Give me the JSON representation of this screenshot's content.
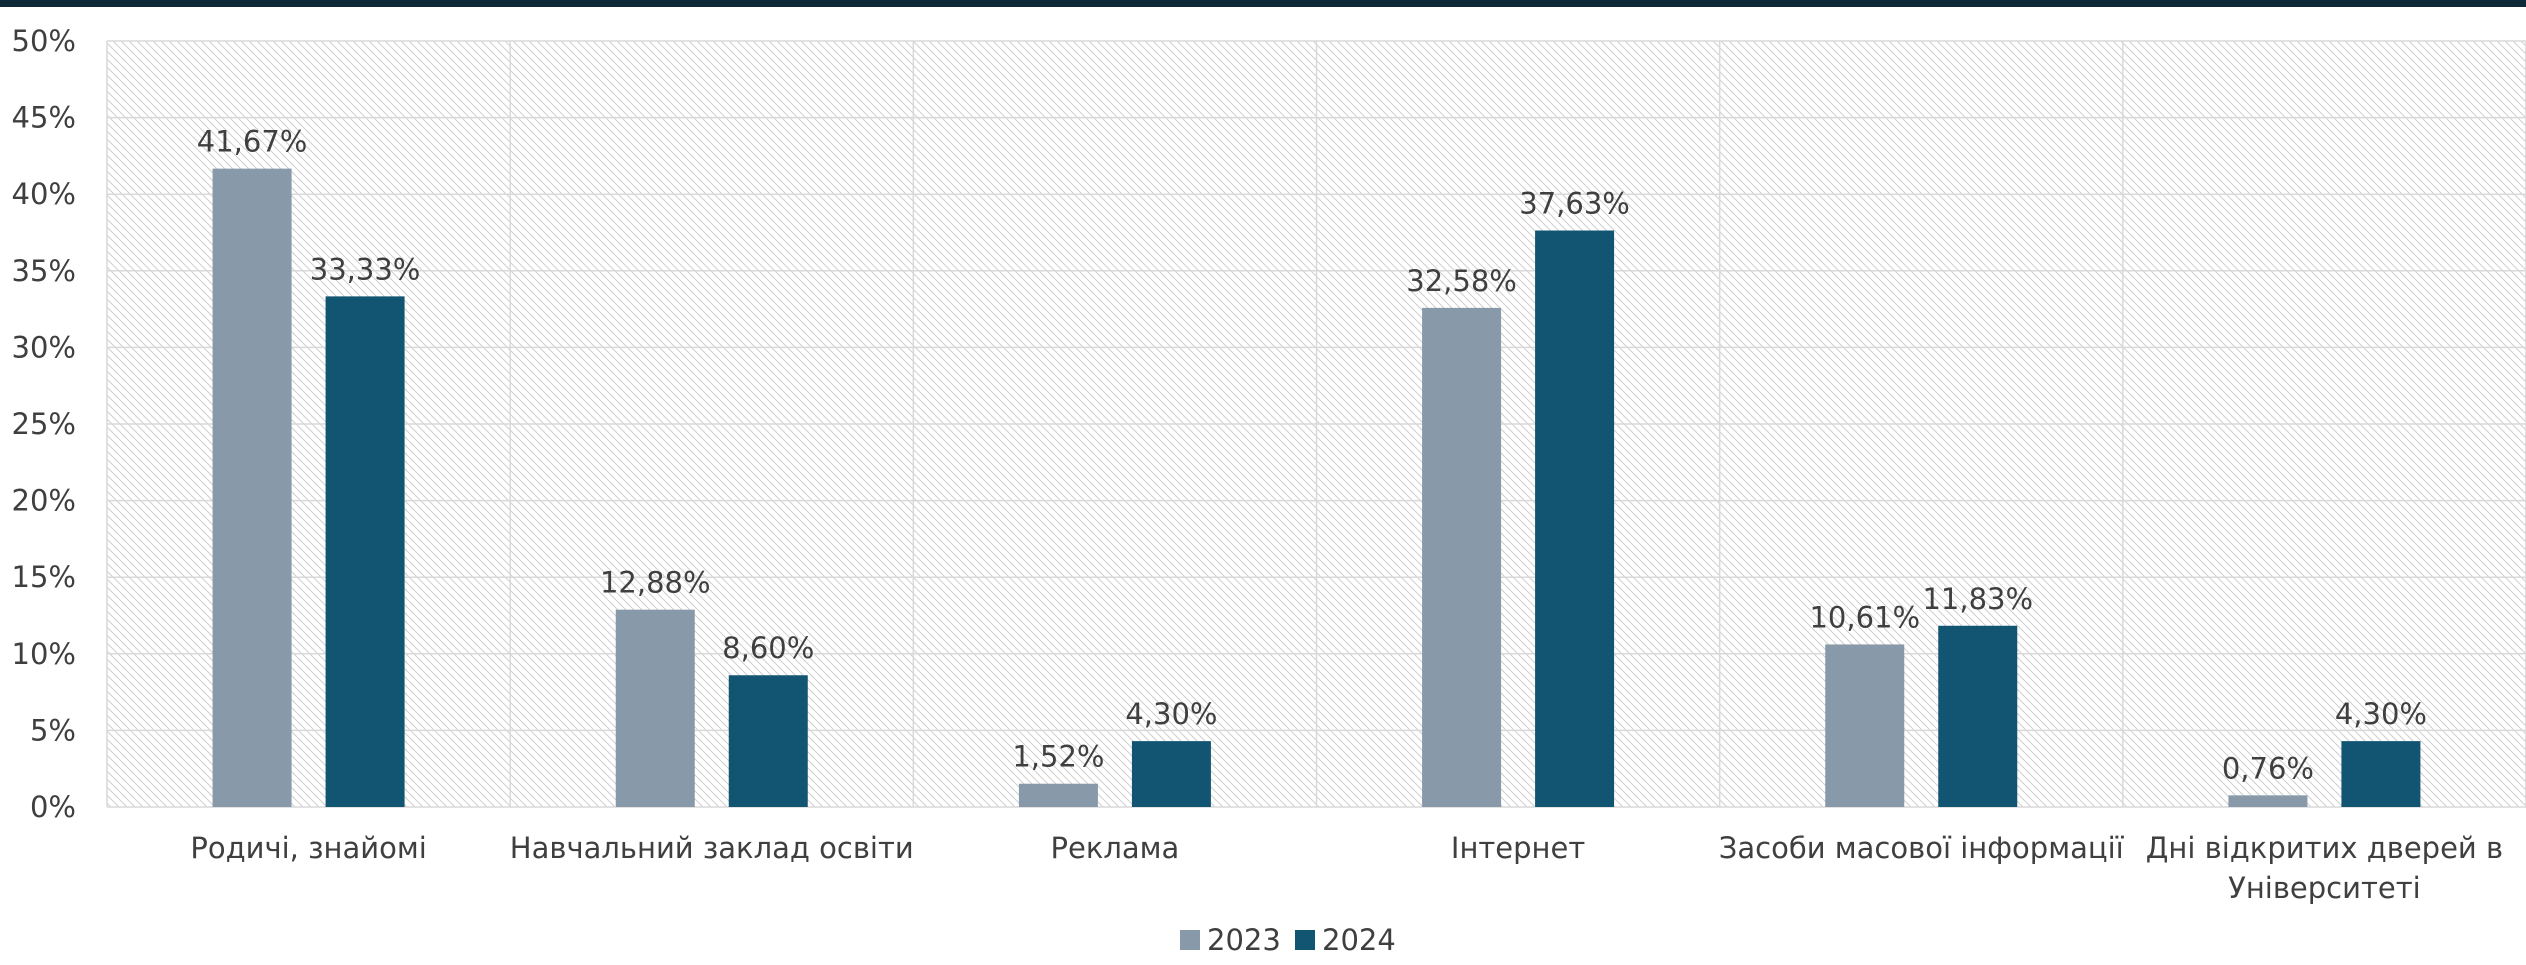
{
  "colors": {
    "series_2023": "#8899aa",
    "series_2024": "#115572",
    "grid": "#d9d9d9",
    "hatch": "#cfcfcf",
    "text": "#3f3f3f",
    "top_bar": "#0e2a38"
  },
  "chart_data": {
    "type": "bar",
    "title": "",
    "xlabel": "",
    "ylabel": "",
    "ylim": [
      0,
      50
    ],
    "yticks": [
      "0%",
      "5%",
      "10%",
      "15%",
      "20%",
      "25%",
      "30%",
      "35%",
      "40%",
      "45%",
      "50%"
    ],
    "ytick_values": [
      0,
      5,
      10,
      15,
      20,
      25,
      30,
      35,
      40,
      45,
      50
    ],
    "categories": [
      "Родичі, знайомі",
      "Навчальний заклад освіти",
      "Реклама",
      "Інтернет",
      "Засоби масової інформації",
      [
        "Дні відкритих дверей в",
        "Університеті"
      ]
    ],
    "series": [
      {
        "name": "2023",
        "values": [
          41.67,
          12.88,
          1.52,
          32.58,
          10.61,
          0.76
        ],
        "labels": [
          "41,67%",
          "12,88%",
          "1,52%",
          "32,58%",
          "10,61%",
          "0,76%"
        ]
      },
      {
        "name": "2024",
        "values": [
          33.33,
          8.6,
          4.3,
          37.63,
          11.83,
          4.3
        ],
        "labels": [
          "33,33%",
          "8,60%",
          "4,30%",
          "37,63%",
          "11,83%",
          "4,30%"
        ]
      }
    ],
    "grid": true,
    "legend": "bottom-center"
  }
}
